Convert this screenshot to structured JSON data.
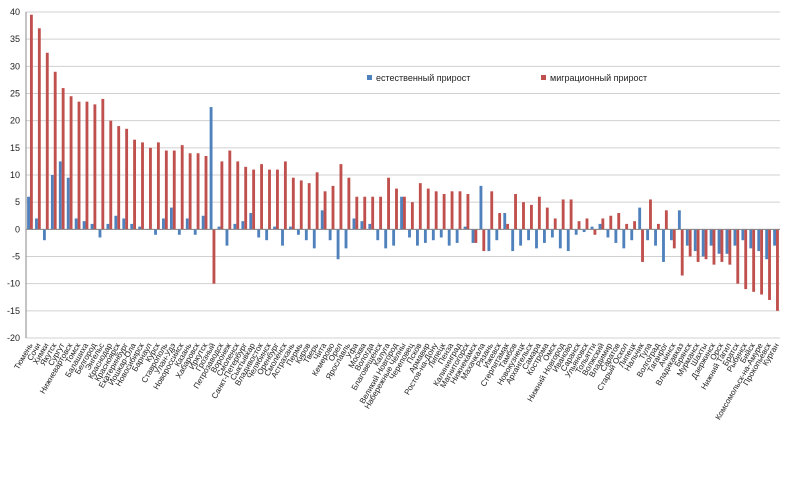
{
  "chart_data": {
    "type": "bar",
    "ylim": [
      -20,
      40
    ],
    "yticks": [
      -20,
      -15,
      -10,
      -5,
      0,
      5,
      10,
      15,
      20,
      25,
      30,
      35,
      40
    ],
    "grid": true,
    "legend_position": "top-center",
    "colors": {
      "natural": "#4f81bd",
      "migration": "#c0504d"
    },
    "categories": [
      "Тюмень",
      "Сочи",
      "Химки",
      "Якутск",
      "Сургут",
      "Нижневартовск",
      "Томск",
      "Балашиха",
      "Белгород",
      "Энгельс",
      "Краснодар",
      "Красноярск",
      "Екатеринбург",
      "Йошкар-Ола",
      "Новосибирск",
      "Барнаул",
      "Курск",
      "Ставрополь",
      "Улан-Удэ",
      "Новороссийск",
      "Казань",
      "Хабаровск",
      "Иркутск",
      "Грозный",
      "Петрозаводск",
      "Воронеж",
      "Смоленск",
      "Санкт-Петербург",
      "Сыктывкар",
      "Владивосток",
      "Челябинск",
      "Оренбург",
      "Смоленск",
      "Астрахань",
      "Пермь",
      "Киров",
      "Тверь",
      "Чита",
      "Кемерово",
      "Орел",
      "Ярославль",
      "Уфа",
      "Москва",
      "Вологда",
      "Благовещенск",
      "Калуга",
      "Великий Новгород",
      "Набережные Челны",
      "Череповец",
      "Псков",
      "Армавир",
      "Ростов-на-Дону",
      "Липецк",
      "Пенза",
      "Калининград",
      "Магнитогорск",
      "Нижнекамск",
      "Махачкала",
      "Рязань",
      "Ижевск",
      "Стерлитамак",
      "Тамбов",
      "Новокузнецк",
      "Архангельск",
      "Самара",
      "Кострома",
      "Омск",
      "Нижний Новгород",
      "Иваново",
      "Саранск",
      "Ульяновск",
      "Тольятти",
      "Волжский",
      "Владимир",
      "Саратов",
      "Старый Оскол",
      "Липецк",
      "Нальчик",
      "Тула",
      "Волгоград",
      "Таганрог",
      "Ачинск",
      "Владикавказ",
      "Брянск",
      "Мурманск",
      "Шахты",
      "Дзержинск",
      "Орск",
      "Нижний Тагил",
      "Братск",
      "Рыбинск",
      "Бийск",
      "Комсомольск-на-Амуре",
      "Прокопьевск",
      "Курган"
    ],
    "series": [
      {
        "name": "естественный прирост",
        "values": [
          6,
          2,
          -2,
          10,
          12.5,
          9.5,
          2,
          1.5,
          1,
          -1.5,
          1,
          2.5,
          2,
          1,
          0.5,
          0,
          -1,
          2,
          4,
          -1,
          2,
          -1,
          2.5,
          22.5,
          0.5,
          -3,
          1,
          1.5,
          3,
          -1.5,
          -2,
          0.5,
          -3,
          0.5,
          -1,
          -2,
          -3.5,
          3.5,
          -2,
          -5.5,
          -3.5,
          2,
          1.5,
          1,
          -2,
          -3.5,
          -3,
          6,
          -1.5,
          -3,
          -2.5,
          -2,
          -1.5,
          -3,
          -2.5,
          0.5,
          -2.5,
          8,
          -4,
          -2,
          3,
          -4,
          -3,
          -2,
          -3.5,
          -2.5,
          -1.5,
          -3.5,
          -4,
          -1,
          -0.5,
          0.5,
          1,
          -1.5,
          -2.5,
          -3.5,
          -2,
          4,
          -2,
          -3,
          -6,
          -2,
          3.5,
          -3,
          -4,
          -5,
          -3,
          -4.5,
          -4.5,
          -3,
          -2,
          -3.5,
          -4,
          -5.5,
          -3
        ]
      },
      {
        "name": "миграционный прирост",
        "values": [
          39.5,
          37,
          32.5,
          29,
          26,
          24.5,
          23.5,
          23.5,
          23,
          24,
          20,
          19,
          18.5,
          16.5,
          16,
          15,
          16,
          14.5,
          14.5,
          15.5,
          14,
          14,
          13.5,
          -10,
          12.5,
          14.5,
          12.5,
          11.5,
          11,
          12,
          11,
          11,
          12.5,
          9.5,
          9,
          8.5,
          10.5,
          7,
          8,
          12,
          9.5,
          6,
          6,
          6,
          6,
          9.5,
          7.5,
          6,
          5,
          8.5,
          7.5,
          7,
          6.5,
          7,
          7,
          6.5,
          -2.5,
          -4,
          7,
          3,
          1,
          6.5,
          5,
          4.5,
          6,
          4,
          2,
          5.5,
          5.5,
          1.5,
          2,
          -1,
          2,
          2.5,
          3,
          1,
          1.5,
          -6,
          5.5,
          1,
          3.5,
          -3.5,
          -8.5,
          -5,
          -6,
          -5.5,
          -6.5,
          -6,
          -6.5,
          -10,
          -11,
          -11.5,
          -12,
          -13,
          -15
        ]
      }
    ]
  }
}
